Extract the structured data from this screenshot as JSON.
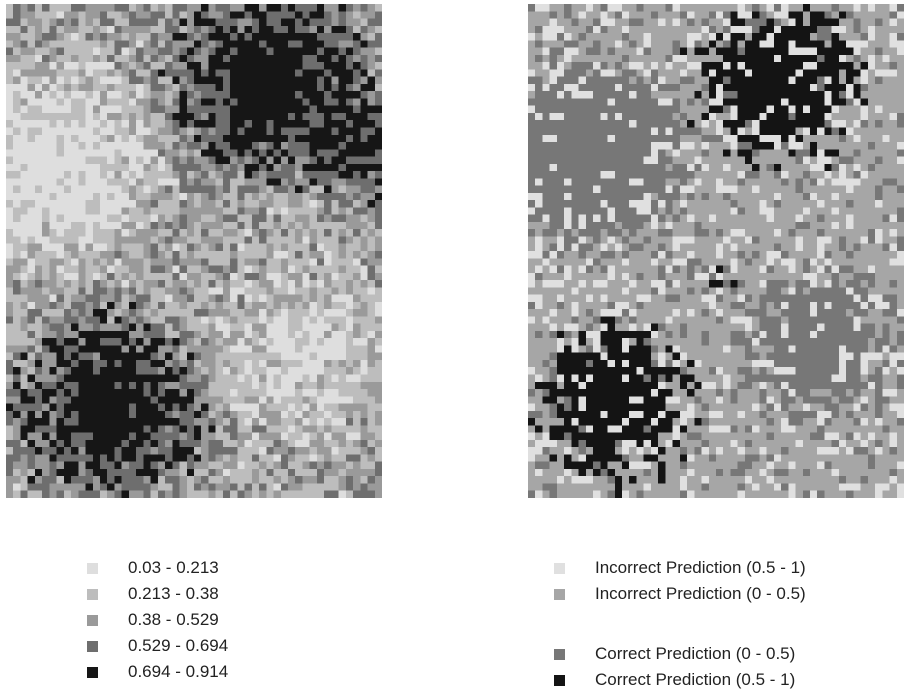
{
  "left_map": {
    "legend": [
      {
        "label": "0.03 - 0.213",
        "color": "#dedede"
      },
      {
        "label": "0.213 - 0.38",
        "color": "#bdbdbd"
      },
      {
        "label": "0.38 - 0.529",
        "color": "#9a9a9a"
      },
      {
        "label": "0.529 - 0.694",
        "color": "#6e6e6e"
      },
      {
        "label": "0.694 - 0.914",
        "color": "#161616"
      }
    ]
  },
  "right_map": {
    "legend_groups": [
      [
        {
          "label": "Incorrect Prediction (0.5 - 1)",
          "color": "#e0e0e0"
        },
        {
          "label": "Incorrect Prediction (0 - 0.5)",
          "color": "#a6a6a6"
        }
      ],
      [
        {
          "label": "Correct Prediction (0 - 0.5)",
          "color": "#777777"
        },
        {
          "label": "Correct Prediction (0.5 - 1)",
          "color": "#141414"
        }
      ]
    ]
  }
}
